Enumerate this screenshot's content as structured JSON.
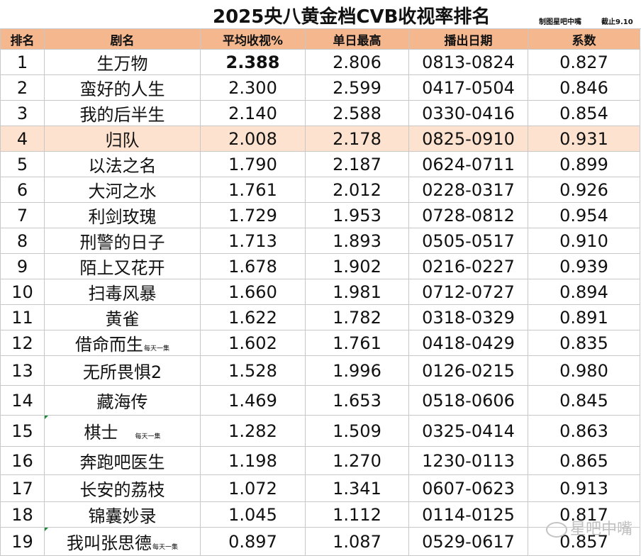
{
  "title": "2025央八黄金档CVB收视率排名",
  "credit_maker": "制图星吧中嘴",
  "credit_date": "截止9.10",
  "headers": [
    "排名",
    "剧名",
    "平均收视%",
    "单日最高",
    "播出日期",
    "系数"
  ],
  "highlight_rank": "4",
  "rows": [
    {
      "rank": "1",
      "name": "生万物",
      "note": "",
      "avg": "2.388",
      "peak": "2.806",
      "dates": "0813-0824",
      "coef": "0.827"
    },
    {
      "rank": "2",
      "name": "蛮好的人生",
      "note": "",
      "avg": "2.300",
      "peak": "2.599",
      "dates": "0417-0504",
      "coef": "0.846"
    },
    {
      "rank": "3",
      "name": "我的后半生",
      "note": "",
      "avg": "2.140",
      "peak": "2.588",
      "dates": "0330-0416",
      "coef": "0.854"
    },
    {
      "rank": "4",
      "name": "归队",
      "note": "",
      "avg": "2.008",
      "peak": "2.178",
      "dates": "0825-0910",
      "coef": "0.931"
    },
    {
      "rank": "5",
      "name": "以法之名",
      "note": "",
      "avg": "1.790",
      "peak": "2.187",
      "dates": "0624-0711",
      "coef": "0.899"
    },
    {
      "rank": "6",
      "name": "大河之水",
      "note": "",
      "avg": "1.761",
      "peak": "2.012",
      "dates": "0228-0317",
      "coef": "0.926"
    },
    {
      "rank": "7",
      "name": "利剑玫瑰",
      "note": "",
      "avg": "1.729",
      "peak": "1.953",
      "dates": "0728-0812",
      "coef": "0.954"
    },
    {
      "rank": "8",
      "name": "刑警的日子",
      "note": "",
      "avg": "1.713",
      "peak": "1.893",
      "dates": "0505-0517",
      "coef": "0.910"
    },
    {
      "rank": "9",
      "name": "陌上又花开",
      "note": "",
      "avg": "1.678",
      "peak": "1.902",
      "dates": "0216-0227",
      "coef": "0.939"
    },
    {
      "rank": "10",
      "name": "扫毒风暴",
      "note": "",
      "avg": "1.660",
      "peak": "1.981",
      "dates": "0712-0727",
      "coef": "0.894"
    },
    {
      "rank": "11",
      "name": "黄雀",
      "note": "",
      "avg": "1.622",
      "peak": "1.782",
      "dates": "0318-0329",
      "coef": "0.891"
    },
    {
      "rank": "12",
      "name": "借命而生",
      "note": "每天一集",
      "avg": "1.602",
      "peak": "1.761",
      "dates": "0418-0429",
      "coef": "0.835"
    },
    {
      "rank": "13",
      "name": "无所畏惧2",
      "note": "",
      "avg": "1.528",
      "peak": "1.996",
      "dates": "0126-0215",
      "coef": "0.980"
    },
    {
      "rank": "14",
      "name": "藏海传",
      "note": "",
      "avg": "1.469",
      "peak": "1.653",
      "dates": "0518-0606",
      "coef": "0.845"
    },
    {
      "rank": "15",
      "name": "棋士",
      "note": "每天一集",
      "avg": "1.282",
      "peak": "1.509",
      "dates": "0325-0414",
      "coef": "0.863"
    },
    {
      "rank": "16",
      "name": "奔跑吧医生",
      "note": "",
      "avg": "1.198",
      "peak": "1.270",
      "dates": "1230-0113",
      "coef": "0.865"
    },
    {
      "rank": "17",
      "name": "长安的荔枝",
      "note": "",
      "avg": "1.072",
      "peak": "1.341",
      "dates": "0607-0623",
      "coef": "0.913"
    },
    {
      "rank": "18",
      "name": "锦囊妙录",
      "note": "",
      "avg": "1.045",
      "peak": "1.112",
      "dates": "0114-0125",
      "coef": "0.817"
    },
    {
      "rank": "19",
      "name": "我叫张思德",
      "note": "每天一集",
      "avg": "0.897",
      "peak": "1.087",
      "dates": "0529-0617",
      "coef": "0.857"
    }
  ],
  "watermark": "星吧中嘴",
  "colors": {
    "header_bg": "#f5b78e",
    "highlight_bg": "#fde3cf",
    "grid": "#c8c8c8"
  }
}
